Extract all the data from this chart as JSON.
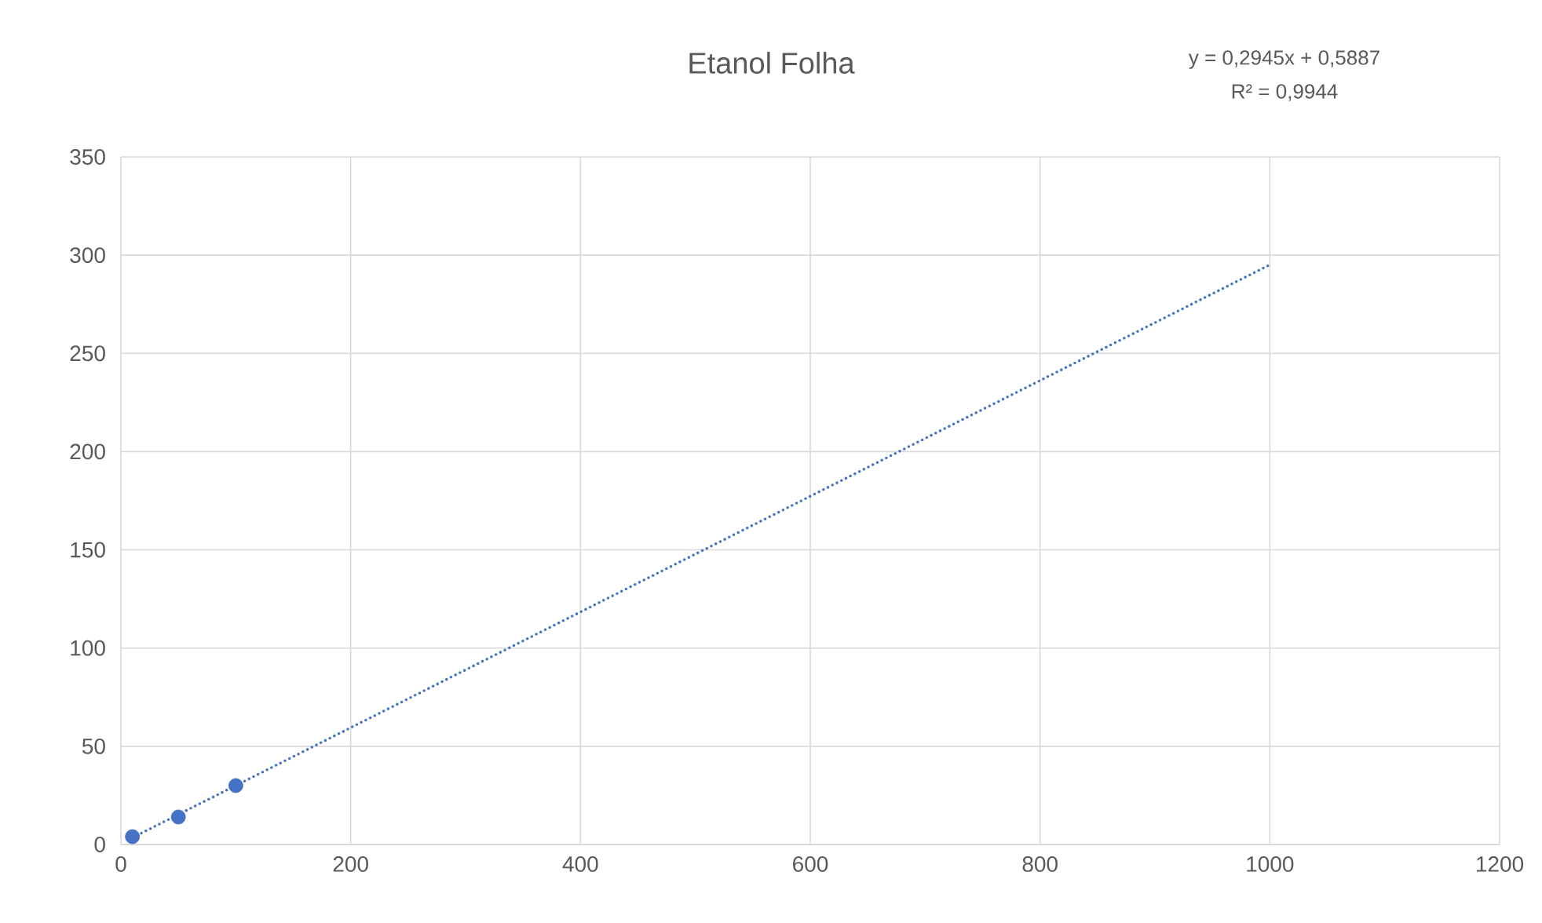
{
  "chart_data": {
    "type": "scatter",
    "title": "Etanol Folha",
    "annotations": [
      "y = 0,2945x + 0,5887",
      "R² = 0,9944"
    ],
    "series": [
      {
        "color": "#4472c4",
        "marker": "circle",
        "x": [
          10,
          50,
          100
        ],
        "values": [
          4,
          14,
          30
        ]
      },
      {
        "type": "line",
        "color": "#4472c4",
        "marker": "none",
        "line_style": "dotted",
        "x": [
          10,
          1000
        ],
        "values": [
          3.5,
          295.1
        ]
      }
    ],
    "xlim": [
      0,
      1200
    ],
    "xticks": [
      0,
      200,
      400,
      600,
      800,
      1000,
      1200
    ],
    "ylim": [
      0,
      350
    ],
    "yticks": [
      0,
      50,
      100,
      150,
      200,
      250,
      300,
      350
    ],
    "grid": true
  }
}
